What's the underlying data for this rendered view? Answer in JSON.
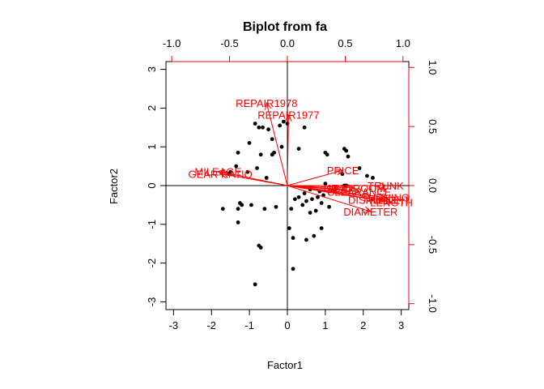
{
  "chart_data": {
    "type": "scatter",
    "title": "Biplot from fa",
    "xlabel": "Factor1",
    "ylabel": "Factor2",
    "xlim": [
      -3.2,
      3.2
    ],
    "ylim": [
      -3.2,
      3.2
    ],
    "loading_lim": [
      -1.05,
      1.05
    ],
    "x_ticks": [
      -3,
      -2,
      -1,
      0,
      1,
      2,
      3
    ],
    "y_ticks": [
      -3,
      -2,
      -1,
      0,
      1,
      2,
      3
    ],
    "loading_ticks": [
      -1.0,
      -0.5,
      0.0,
      0.5,
      1.0
    ],
    "loading_tick_labels": [
      "-1.0",
      "-0.5",
      "0.0",
      "0.5",
      "1.0"
    ],
    "colors": {
      "points": "#000000",
      "vectors": "#ff0000",
      "axes": "#000000"
    },
    "scores": [
      {
        "x": -1.7,
        "y": -0.6
      },
      {
        "x": -1.3,
        "y": -0.95
      },
      {
        "x": -1.3,
        "y": -0.6
      },
      {
        "x": -1.25,
        "y": -0.45
      },
      {
        "x": -1.2,
        "y": -0.5
      },
      {
        "x": -0.95,
        "y": -0.5
      },
      {
        "x": -0.6,
        "y": -0.6
      },
      {
        "x": -0.3,
        "y": -0.55
      },
      {
        "x": -0.75,
        "y": -1.55
      },
      {
        "x": -0.7,
        "y": -1.6
      },
      {
        "x": -0.85,
        "y": -2.55
      },
      {
        "x": 0.15,
        "y": -2.15
      },
      {
        "x": -1.55,
        "y": 0.3
      },
      {
        "x": -1.5,
        "y": 0.35
      },
      {
        "x": -1.35,
        "y": 0.5
      },
      {
        "x": -1.3,
        "y": 0.85
      },
      {
        "x": -1.05,
        "y": 0.35
      },
      {
        "x": -0.8,
        "y": 0.45
      },
      {
        "x": -0.55,
        "y": 0.2
      },
      {
        "x": -0.75,
        "y": 1.5
      },
      {
        "x": -0.65,
        "y": 1.5
      },
      {
        "x": -0.5,
        "y": 1.45
      },
      {
        "x": -0.4,
        "y": 1.2
      },
      {
        "x": -0.4,
        "y": 0.8
      },
      {
        "x": -0.85,
        "y": 1.6
      },
      {
        "x": -1.0,
        "y": 1.1
      },
      {
        "x": -0.7,
        "y": 0.8
      },
      {
        "x": -0.1,
        "y": 1.65
      },
      {
        "x": -0.2,
        "y": 1.55
      },
      {
        "x": -0.35,
        "y": 0.85
      },
      {
        "x": -0.15,
        "y": 1.0
      },
      {
        "x": 0.0,
        "y": 1.6
      },
      {
        "x": 0.45,
        "y": 1.5
      },
      {
        "x": 0.3,
        "y": 0.95
      },
      {
        "x": -0.4,
        "y": 0.8
      },
      {
        "x": 1.0,
        "y": 0.85
      },
      {
        "x": 1.05,
        "y": 0.8
      },
      {
        "x": 1.5,
        "y": 0.95
      },
      {
        "x": 1.55,
        "y": 0.9
      },
      {
        "x": 1.6,
        "y": 0.75
      },
      {
        "x": 1.9,
        "y": 0.45
      },
      {
        "x": 2.1,
        "y": 0.25
      },
      {
        "x": 2.25,
        "y": 0.2
      },
      {
        "x": 1.45,
        "y": 0.3
      },
      {
        "x": 1.5,
        "y": 0.0
      },
      {
        "x": 1.55,
        "y": 0.0
      },
      {
        "x": 1.25,
        "y": -0.1
      },
      {
        "x": 1.0,
        "y": 0.05
      },
      {
        "x": 0.85,
        "y": -0.15
      },
      {
        "x": 0.6,
        "y": -0.1
      },
      {
        "x": 0.45,
        "y": -0.2
      },
      {
        "x": 0.3,
        "y": -0.3
      },
      {
        "x": 0.2,
        "y": -0.35
      },
      {
        "x": 0.5,
        "y": -0.4
      },
      {
        "x": 0.4,
        "y": -0.5
      },
      {
        "x": 0.75,
        "y": -0.65
      },
      {
        "x": 0.6,
        "y": -0.7
      },
      {
        "x": 0.9,
        "y": -0.45
      },
      {
        "x": 1.1,
        "y": -0.55
      },
      {
        "x": 0.05,
        "y": -1.1
      },
      {
        "x": 0.15,
        "y": -1.35
      },
      {
        "x": 0.5,
        "y": -1.4
      },
      {
        "x": 0.7,
        "y": -1.3
      },
      {
        "x": 0.9,
        "y": -1.1
      },
      {
        "x": 0.1,
        "y": -0.6
      },
      {
        "x": 0.8,
        "y": -0.3
      },
      {
        "x": 0.95,
        "y": -0.25
      },
      {
        "x": 0.65,
        "y": -0.35
      }
    ],
    "loadings": [
      {
        "name": "REPAIR1978",
        "x": -0.18,
        "y": 0.7
      },
      {
        "name": "REPAIR1977",
        "x": 0.01,
        "y": 0.6
      },
      {
        "name": "PRICE",
        "x": 0.48,
        "y": 0.13
      },
      {
        "name": "TRUNK",
        "x": 0.85,
        "y": 0.0
      },
      {
        "name": "SEAT",
        "x": 0.45,
        "y": -0.03
      },
      {
        "name": "HEADROOM",
        "x": 0.58,
        "y": -0.02
      },
      {
        "name": "CLEARANCE",
        "x": 0.62,
        "y": -0.05
      },
      {
        "name": "TURNING",
        "x": 0.85,
        "y": -0.1
      },
      {
        "name": "WEIGHT",
        "x": 0.88,
        "y": -0.12
      },
      {
        "name": "LENGTH",
        "x": 0.9,
        "y": -0.14
      },
      {
        "name": "DISPLACE",
        "x": 0.75,
        "y": -0.12
      },
      {
        "name": "DIAMETER",
        "x": 0.72,
        "y": -0.22
      },
      {
        "name": "MILEAGE",
        "x": -0.6,
        "y": 0.12
      },
      {
        "name": "GEAR RATIO",
        "x": -0.58,
        "y": 0.1
      }
    ]
  }
}
